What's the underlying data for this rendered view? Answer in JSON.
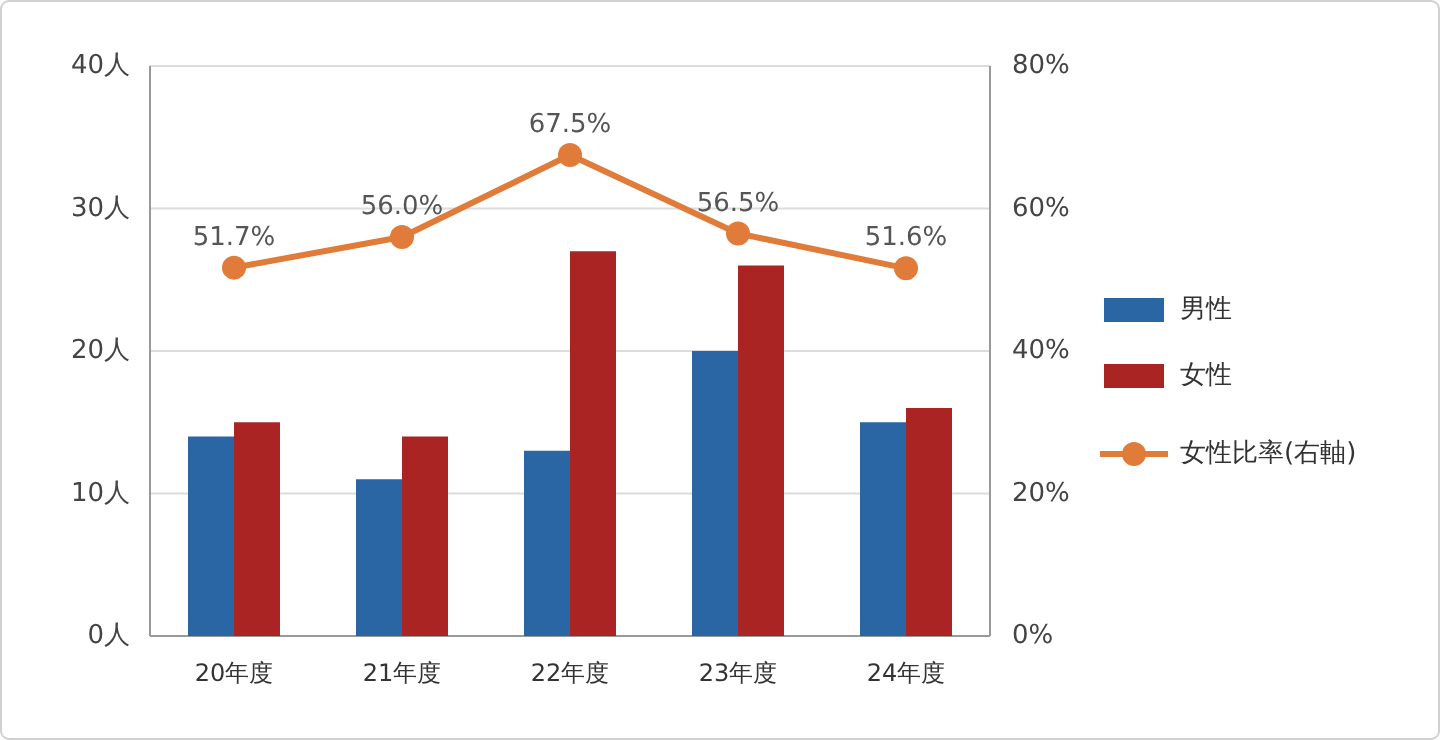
{
  "chart_data": {
    "type": "bar",
    "categories": [
      "20年度",
      "21年度",
      "22年度",
      "23年度",
      "24年度"
    ],
    "series": [
      {
        "name": "男性",
        "color": "#2966a3",
        "values": [
          14,
          11,
          13,
          20,
          15
        ]
      },
      {
        "name": "女性",
        "color": "#aa2424",
        "values": [
          15,
          14,
          27,
          26,
          16
        ]
      },
      {
        "name": "女性比率(右軸)",
        "type": "line",
        "axis": "y2",
        "color": "#e07b39",
        "marker": "circle",
        "values": [
          51.7,
          56.0,
          67.5,
          56.5,
          51.6
        ],
        "value_labels": [
          "51.7%",
          "56.0%",
          "67.5%",
          "56.5%",
          "51.6%"
        ]
      }
    ],
    "ylim": [
      0,
      40
    ],
    "yticks": [
      {
        "value": 0,
        "label": "0人"
      },
      {
        "value": 10,
        "label": "10人"
      },
      {
        "value": 20,
        "label": "20人"
      },
      {
        "value": 30,
        "label": "30人"
      },
      {
        "value": 40,
        "label": "40人"
      }
    ],
    "y2lim": [
      0,
      80
    ],
    "y2ticks": [
      {
        "value": 0,
        "label": "0%"
      },
      {
        "value": 20,
        "label": "20%"
      },
      {
        "value": 40,
        "label": "40%"
      },
      {
        "value": 60,
        "label": "60%"
      },
      {
        "value": 80,
        "label": "80%"
      }
    ],
    "grid": "y",
    "legend": "right"
  }
}
